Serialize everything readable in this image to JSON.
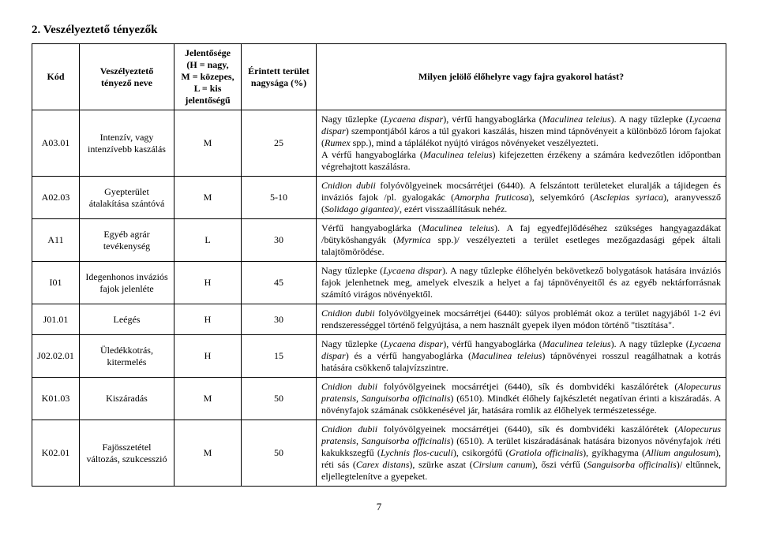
{
  "title": "2. Veszélyeztető tényezők",
  "page_number": "7",
  "headers": {
    "code": "Kód",
    "name": "Veszélyeztető tényező neve",
    "significance": "Jelentősége\n(H = nagy,\nM = közepes,\nL = kis\njelentőségű",
    "area": "Érintett terület nagysága (%)",
    "effect": "Milyen jelölő élőhelyre vagy fajra gyakorol hatást?"
  },
  "rows": [
    {
      "code": "A03.01",
      "name": "Intenzív, vagy intenzívebb kaszálás",
      "sig": "M",
      "area": "25",
      "effect_html": "Nagy tűzlepke (<i>Lycaena dispar</i>), vérfű hangyaboglárka (<i>Maculinea teleius</i>). A nagy tűzlepke (<i>Lycaena dispar</i>) szempontjából káros a túl gyakori kaszálás, hiszen mind tápnövényeit a különböző lórom fajokat (<i>Rumex</i> spp.), mind a táplálékot nyújtó virágos növényeket veszélyezteti.<br>A vérfű hangyaboglárka (<i>Maculinea teleius</i>) kifejezetten érzékeny a számára kedvezőtlen időpontban végrehajtott kaszálásra."
    },
    {
      "code": "A02.03",
      "name": "Gyepterület átalakítása szántóvá",
      "sig": "M",
      "area": "5-10",
      "effect_html": "<i>Cnidion dubii</i> folyóvölgyeinek mocsárrétjei (6440). A felszántott területeket eluralják a tájidegen és inváziós fajok /pl. gyalogakác (<i>Amorpha fruticosa</i>), selyemkóró (<i>Asclepias syriaca</i>), aranyvessző (<i>Solidago gigantea</i>)/, ezért visszaállításuk nehéz."
    },
    {
      "code": "A11",
      "name": "Egyéb agrár tevékenység",
      "sig": "L",
      "area": "30",
      "effect_html": "Vérfű hangyaboglárka (<i>Maculinea teleius</i>). A faj egyedfejlődéséhez szükséges hangyagazdákat /bütyköshangyák (<i>Myrmica</i> spp.)/ veszélyezteti a terület esetleges mezőgazdasági gépek általi talajtömörödése."
    },
    {
      "code": "I01",
      "name": "Idegenhonos inváziós fajok jelenléte",
      "sig": "H",
      "area": "45",
      "effect_html": "Nagy tűzlepke (<i>Lycaena dispar</i>). A nagy tűzlepke élőhelyén bekövetkező bolygatások hatására inváziós fajok jelenhetnek meg, amelyek elveszik a helyet a faj tápnövényeitől és az egyéb nektárforrásnak számító virágos növényektől."
    },
    {
      "code": "J01.01",
      "name": "Leégés",
      "sig": "H",
      "area": "30",
      "effect_html": "<i>Cnidion dubii</i> folyóvölgyeinek mocsárrétjei (6440): súlyos problémát okoz a terület nagyjából 1-2 évi rendszerességgel történő felgyújtása, a nem használt gyepek ilyen módon történő \"tisztítása\"."
    },
    {
      "code": "J02.02.01",
      "name": "Üledékkotrás, kitermelés",
      "sig": "H",
      "area": "15",
      "effect_html": "Nagy tűzlepke (<i>Lycaena dispar</i>), vérfű hangyaboglárka (<i>Maculinea teleius</i>). A nagy tűzlepke (<i>Lycaena dispar</i>) és a vérfű hangyaboglárka (<i>Maculinea teleius</i>) tápnövényei rosszul reagálhatnak a kotrás hatására csökkenő talajvízszintre."
    },
    {
      "code": "K01.03",
      "name": "Kiszáradás",
      "sig": "M",
      "area": "50",
      "effect_html": "<i>Cnidion dubii</i> folyóvölgyeinek mocsárrétjei (6440), sík és dombvidéki kaszálórétek (<i>Alopecurus pratensis, Sanguisorba officinalis</i>) (6510). Mindkét élőhely fajkészletét negatívan érinti a kiszáradás. A növényfajok számának csökkenésével jár, hatására romlik az élőhelyek természetessége."
    },
    {
      "code": "K02.01",
      "name": "Fajösszetétel változás, szukcesszió",
      "sig": "M",
      "area": "50",
      "effect_html": "<i>Cnidion dubii</i> folyóvölgyeinek mocsárrétjei (6440), sík és dombvidéki kaszálórétek (<i>Alopecurus pratensis, Sanguisorba officinalis</i>) (6510). A terület kiszáradásának hatására bizonyos növényfajok /réti kakukkszegfű (<i>Lychnis flos-cuculi</i>), csikorgófű (<i>Gratiola officinalis</i>), gyíkhagyma (<i>Allium angulosum</i>), réti sás (<i>Carex distans</i>), szürke aszat (<i>Cirsium canum</i>), őszi vérfű (<i>Sanguisorba officinalis</i>)/ eltűnnek, eljellegtelenítve a gyepeket."
    }
  ]
}
